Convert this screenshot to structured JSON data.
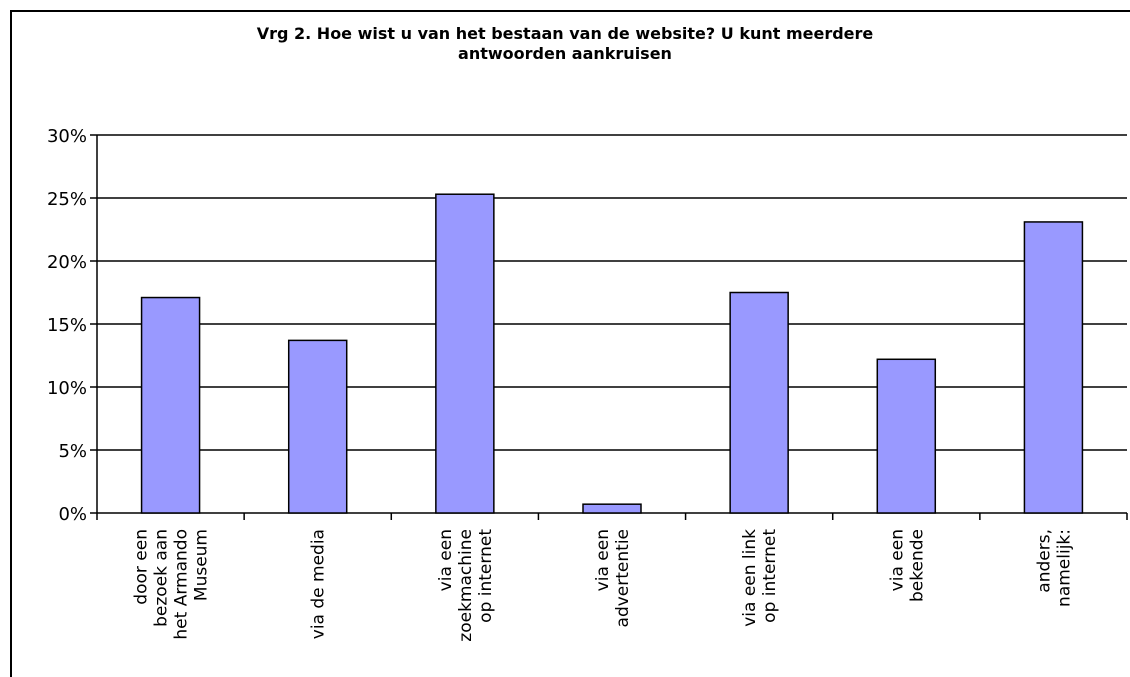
{
  "chart_data": {
    "type": "bar",
    "title": "Vrg 2. Hoe wist u van het bestaan van de website? U kunt meerdere antwoorden aankruisen",
    "title_lines": [
      "Vrg 2. Hoe wist u van het bestaan van de website? U kunt meerdere",
      "antwoorden aankruisen"
    ],
    "xlabel": "",
    "ylabel": "",
    "ylim": [
      0,
      30
    ],
    "yticks": [
      0,
      5,
      10,
      15,
      20,
      25,
      30
    ],
    "ytick_labels": [
      "0%",
      "5%",
      "10%",
      "15%",
      "20%",
      "25%",
      "30%"
    ],
    "grid": true,
    "legend": "none",
    "bar_color": "#9999ff",
    "categories": [
      "door een bezoek aan het Armando Museum",
      "via de media",
      "via een zoekmachine op internet",
      "via een advertentie",
      "via een link op internet",
      "via een bekende",
      "anders, namelijk:"
    ],
    "category_lines": [
      [
        "door een",
        "bezoek aan",
        "het Armando",
        "Museum"
      ],
      [
        "via de media"
      ],
      [
        "via een",
        "zoekmachine",
        "op internet"
      ],
      [
        "via een",
        "advertentie"
      ],
      [
        "via een link",
        "op internet"
      ],
      [
        "via een",
        "bekende"
      ],
      [
        "anders,",
        "namelijk:"
      ]
    ],
    "values": [
      17.1,
      13.7,
      25.3,
      0.7,
      17.5,
      12.2,
      23.1
    ]
  }
}
